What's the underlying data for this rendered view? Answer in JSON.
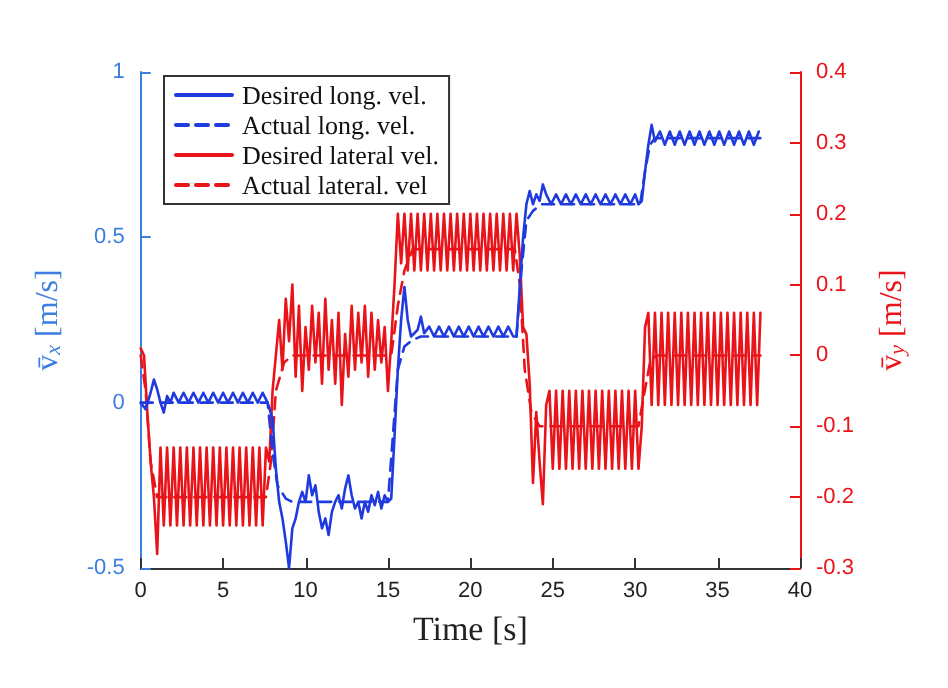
{
  "chart_data": {
    "type": "line",
    "xlabel": "Time [s]",
    "ylabel": "v̄$_{x}$ [m/s]",
    "y2label": "v̄$_{y}$ [m/s]",
    "xlim": [
      0,
      40
    ],
    "xticks": [
      0,
      5,
      10,
      15,
      20,
      25,
      30,
      35,
      40
    ],
    "ylim": [
      -0.5,
      1
    ],
    "yticks": [
      -0.5,
      0,
      0.5,
      1
    ],
    "y2lim": [
      -0.3,
      0.4
    ],
    "y2ticks": [
      -0.3,
      -0.2,
      -0.1,
      0,
      0.1,
      0.2,
      0.3,
      0.4
    ],
    "grid": false,
    "legend": "top left",
    "marker": "none",
    "series": [
      {
        "name": "Desired long. vel.",
        "color": "#1f3be0",
        "line_style": "solid",
        "x": [
          0,
          0.3,
          0.6,
          0.8,
          1.0,
          1.2,
          1.4,
          1.6,
          1.8,
          2.0,
          2.3,
          2.6,
          2.9,
          3.2,
          3.5,
          3.8,
          4.1,
          4.4,
          4.7,
          5.0,
          5.3,
          5.6,
          5.9,
          6.2,
          6.5,
          6.8,
          7.1,
          7.4,
          7.7,
          8.0,
          8.2,
          8.4,
          8.6,
          8.8,
          9.0,
          9.2,
          9.4,
          9.6,
          9.8,
          10.0,
          10.2,
          10.4,
          10.6,
          10.8,
          11.0,
          11.2,
          11.4,
          11.6,
          11.8,
          12.0,
          12.2,
          12.4,
          12.6,
          12.8,
          13.0,
          13.2,
          13.4,
          13.6,
          13.8,
          14.0,
          14.2,
          14.4,
          14.6,
          14.8,
          15.0,
          15.2,
          15.4,
          15.6,
          15.8,
          16.0,
          16.2,
          16.4,
          16.6,
          16.8,
          17.0,
          17.2,
          17.5,
          17.8,
          18.1,
          18.4,
          18.7,
          19.0,
          19.3,
          19.6,
          19.9,
          20.2,
          20.5,
          20.8,
          21.1,
          21.4,
          21.7,
          22.0,
          22.3,
          22.6,
          22.8,
          23.0,
          23.2,
          23.4,
          23.6,
          23.8,
          24.0,
          24.2,
          24.4,
          24.6,
          24.9,
          25.2,
          25.5,
          25.8,
          26.1,
          26.4,
          26.7,
          27.0,
          27.3,
          27.6,
          27.9,
          28.2,
          28.5,
          28.8,
          29.1,
          29.4,
          29.7,
          30.0,
          30.2,
          30.4,
          30.6,
          30.8,
          31.0,
          31.2,
          31.5,
          31.8,
          32.1,
          32.4,
          32.7,
          33.0,
          33.3,
          33.6,
          33.9,
          34.2,
          34.5,
          34.8,
          35.1,
          35.4,
          35.7,
          36.0,
          36.3,
          36.6,
          36.9,
          37.2,
          37.5
        ],
        "values": [
          0.0,
          -0.02,
          0.03,
          0.07,
          0.04,
          0.0,
          -0.03,
          0.02,
          0.0,
          0.03,
          0.0,
          0.03,
          0.0,
          0.03,
          0.0,
          0.03,
          0.0,
          0.03,
          0.0,
          0.03,
          0.0,
          0.03,
          0.0,
          0.03,
          0.0,
          0.03,
          0.0,
          0.03,
          0.0,
          -0.05,
          -0.2,
          -0.3,
          -0.35,
          -0.42,
          -0.5,
          -0.38,
          -0.35,
          -0.3,
          -0.27,
          -0.3,
          -0.22,
          -0.28,
          -0.25,
          -0.33,
          -0.38,
          -0.35,
          -0.4,
          -0.33,
          -0.3,
          -0.28,
          -0.32,
          -0.26,
          -0.22,
          -0.28,
          -0.32,
          -0.3,
          -0.35,
          -0.3,
          -0.33,
          -0.28,
          -0.31,
          -0.27,
          -0.32,
          -0.28,
          -0.3,
          -0.29,
          -0.1,
          0.1,
          0.25,
          0.35,
          0.25,
          0.2,
          0.21,
          0.22,
          0.26,
          0.21,
          0.23,
          0.2,
          0.23,
          0.2,
          0.23,
          0.2,
          0.23,
          0.2,
          0.23,
          0.2,
          0.23,
          0.2,
          0.23,
          0.2,
          0.23,
          0.2,
          0.23,
          0.2,
          0.2,
          0.35,
          0.5,
          0.6,
          0.64,
          0.6,
          0.63,
          0.61,
          0.66,
          0.63,
          0.6,
          0.63,
          0.6,
          0.63,
          0.6,
          0.63,
          0.6,
          0.63,
          0.6,
          0.63,
          0.6,
          0.63,
          0.6,
          0.63,
          0.6,
          0.63,
          0.6,
          0.63,
          0.6,
          0.61,
          0.7,
          0.78,
          0.84,
          0.79,
          0.82,
          0.78,
          0.82,
          0.78,
          0.82,
          0.78,
          0.82,
          0.78,
          0.82,
          0.78,
          0.82,
          0.78,
          0.82,
          0.78,
          0.82,
          0.78,
          0.82,
          0.78,
          0.82,
          0.78,
          0.82
        ]
      },
      {
        "name": "Actual long. vel.",
        "color": "#1f3be0",
        "line_style": "dashed",
        "x": [
          0,
          7.7,
          8.0,
          8.3,
          8.8,
          9.2,
          15.0,
          15.3,
          15.6,
          16.0,
          16.5,
          17.0,
          22.8,
          23.1,
          23.4,
          23.8,
          24.3,
          30.3,
          30.6,
          30.9,
          31.2,
          37.6
        ],
        "values": [
          0.0,
          0.0,
          -0.15,
          -0.25,
          -0.29,
          -0.3,
          -0.3,
          -0.1,
          0.1,
          0.17,
          0.19,
          0.2,
          0.2,
          0.4,
          0.55,
          0.58,
          0.6,
          0.6,
          0.7,
          0.78,
          0.8,
          0.8
        ]
      },
      {
        "name": "Desired lateral vel.",
        "color": "#e8141a",
        "line_style": "solid",
        "axis": "y2",
        "x": [
          0,
          0.2,
          0.4,
          0.6,
          0.8,
          1.0,
          1.2,
          1.4,
          1.6,
          1.8,
          2.0,
          2.2,
          2.4,
          2.6,
          2.8,
          3.0,
          3.2,
          3.4,
          3.6,
          3.8,
          4.0,
          4.2,
          4.4,
          4.6,
          4.8,
          5.0,
          5.2,
          5.4,
          5.6,
          5.8,
          6.0,
          6.2,
          6.4,
          6.6,
          6.8,
          7.0,
          7.2,
          7.4,
          7.6,
          7.8,
          8.0,
          8.2,
          8.4,
          8.6,
          8.8,
          9.0,
          9.2,
          9.4,
          9.6,
          9.8,
          10.0,
          10.2,
          10.4,
          10.6,
          10.8,
          11.0,
          11.2,
          11.4,
          11.6,
          11.8,
          12.0,
          12.2,
          12.4,
          12.6,
          12.8,
          13.0,
          13.2,
          13.4,
          13.6,
          13.8,
          14.0,
          14.2,
          14.4,
          14.6,
          14.8,
          15.0,
          15.2,
          15.4,
          15.6,
          15.8,
          16.0,
          16.2,
          16.4,
          16.6,
          16.8,
          17.0,
          17.2,
          17.4,
          17.6,
          17.8,
          18.0,
          18.2,
          18.4,
          18.6,
          18.8,
          19.0,
          19.2,
          19.4,
          19.6,
          19.8,
          20.0,
          20.2,
          20.4,
          20.6,
          20.8,
          21.0,
          21.2,
          21.4,
          21.6,
          21.8,
          22.0,
          22.2,
          22.4,
          22.6,
          22.8,
          23.0,
          23.2,
          23.4,
          23.6,
          23.8,
          24.0,
          24.2,
          24.4,
          24.6,
          24.8,
          25.0,
          25.2,
          25.4,
          25.6,
          25.8,
          26.0,
          26.2,
          26.4,
          26.6,
          26.8,
          27.0,
          27.2,
          27.4,
          27.6,
          27.8,
          28.0,
          28.2,
          28.4,
          28.6,
          28.8,
          29.0,
          29.2,
          29.4,
          29.6,
          29.8,
          30.0,
          30.2,
          30.4,
          30.6,
          30.8,
          31.0,
          31.2,
          31.4,
          31.6,
          31.8,
          32.0,
          32.2,
          32.4,
          32.6,
          32.8,
          33.0,
          33.2,
          33.4,
          33.6,
          33.8,
          34.0,
          34.2,
          34.4,
          34.6,
          34.8,
          35.0,
          35.2,
          35.4,
          35.6,
          35.8,
          36.0,
          36.2,
          36.4,
          36.6,
          36.8,
          37.0,
          37.2,
          37.4,
          37.6
        ],
        "values": [
          0.01,
          0.0,
          -0.08,
          -0.15,
          -0.2,
          -0.28,
          -0.13,
          -0.24,
          -0.13,
          -0.24,
          -0.13,
          -0.24,
          -0.13,
          -0.24,
          -0.13,
          -0.24,
          -0.13,
          -0.24,
          -0.13,
          -0.24,
          -0.13,
          -0.24,
          -0.13,
          -0.24,
          -0.13,
          -0.24,
          -0.13,
          -0.24,
          -0.13,
          -0.24,
          -0.13,
          -0.24,
          -0.13,
          -0.24,
          -0.13,
          -0.24,
          -0.13,
          -0.24,
          -0.13,
          -0.15,
          -0.05,
          0.0,
          0.05,
          -0.02,
          0.08,
          0.02,
          0.1,
          -0.03,
          0.07,
          -0.05,
          0.04,
          -0.02,
          0.07,
          -0.01,
          0.06,
          -0.04,
          0.08,
          -0.02,
          0.05,
          -0.04,
          0.06,
          -0.07,
          0.03,
          -0.03,
          0.07,
          -0.02,
          0.06,
          -0.01,
          0.07,
          -0.03,
          0.06,
          -0.02,
          0.05,
          -0.01,
          0.04,
          -0.05,
          0.02,
          0.1,
          0.2,
          0.13,
          0.2,
          0.12,
          0.2,
          0.12,
          0.2,
          0.12,
          0.2,
          0.12,
          0.2,
          0.12,
          0.2,
          0.12,
          0.2,
          0.12,
          0.2,
          0.12,
          0.2,
          0.12,
          0.2,
          0.12,
          0.2,
          0.12,
          0.2,
          0.12,
          0.2,
          0.12,
          0.2,
          0.12,
          0.2,
          0.12,
          0.2,
          0.12,
          0.2,
          0.12,
          0.2,
          0.14,
          0.04,
          0.03,
          -0.04,
          -0.18,
          -0.08,
          -0.15,
          -0.21,
          -0.07,
          -0.05,
          -0.16,
          -0.05,
          -0.16,
          -0.05,
          -0.16,
          -0.05,
          -0.16,
          -0.05,
          -0.16,
          -0.05,
          -0.16,
          -0.05,
          -0.16,
          -0.05,
          -0.16,
          -0.05,
          -0.16,
          -0.05,
          -0.16,
          -0.05,
          -0.16,
          -0.05,
          -0.16,
          -0.05,
          -0.16,
          -0.05,
          -0.16,
          -0.1,
          0.04,
          0.06,
          -0.07,
          0.06,
          -0.07,
          0.06,
          -0.07,
          0.06,
          -0.07,
          0.06,
          -0.07,
          0.06,
          -0.07,
          0.06,
          -0.07,
          0.06,
          -0.07,
          0.06,
          -0.07,
          0.06,
          -0.07,
          0.06,
          -0.07,
          0.06,
          -0.07,
          0.06,
          -0.07,
          0.06,
          -0.07,
          0.06,
          -0.07,
          0.06,
          -0.07,
          0.06,
          -0.07,
          0.06
        ]
      },
      {
        "name": "Actual lateral. vel",
        "color": "#e8141a",
        "line_style": "dashed",
        "axis": "y2",
        "x": [
          0,
          0.3,
          0.6,
          1.0,
          1.5,
          7.6,
          7.9,
          8.2,
          8.7,
          9.2,
          15.2,
          15.6,
          16.0,
          16.5,
          22.7,
          23.0,
          23.3,
          23.7,
          24.2,
          30.2,
          30.5,
          30.9,
          31.3,
          37.6
        ],
        "values": [
          0.0,
          -0.05,
          -0.15,
          -0.2,
          -0.2,
          -0.2,
          -0.15,
          -0.05,
          -0.01,
          0.0,
          0.0,
          0.07,
          0.12,
          0.15,
          0.15,
          0.1,
          -0.02,
          -0.08,
          -0.1,
          -0.1,
          -0.06,
          -0.01,
          0.0,
          0.0
        ]
      }
    ]
  }
}
